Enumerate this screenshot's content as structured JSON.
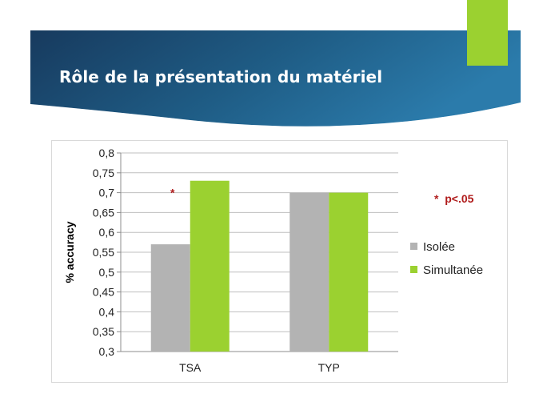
{
  "slide": {
    "title": "Rôle de la présentation du matériel"
  },
  "colors": {
    "banner_dark": "#173a5e",
    "banner_mid": "#1f5d86",
    "banner_light": "#2b7bab",
    "accent_green": "#9bd130",
    "series_gray": "#b3b3b3",
    "series_green": "#9bd130",
    "annotation_red": "#b01c1c"
  },
  "chart_data": {
    "type": "bar",
    "categories": [
      "TSA",
      "TYP"
    ],
    "series": [
      {
        "name": "Isolée",
        "values": [
          0.57,
          0.7
        ]
      },
      {
        "name": "Simultanée",
        "values": [
          0.73,
          0.7
        ]
      }
    ],
    "ylabel": "% accuracy",
    "xlabel": "",
    "ylim": [
      0.3,
      0.8
    ],
    "yticks": [
      "0,3",
      "0,35",
      "0,4",
      "0,45",
      "0,5",
      "0,55",
      "0,6",
      "0,65",
      "0,7",
      "0,75",
      "0,8"
    ],
    "grid": true,
    "legend_position": "right",
    "annotations": [
      {
        "text": "*",
        "category": "TSA"
      },
      {
        "text": "*  p<.05",
        "position": "top-right"
      }
    ]
  }
}
